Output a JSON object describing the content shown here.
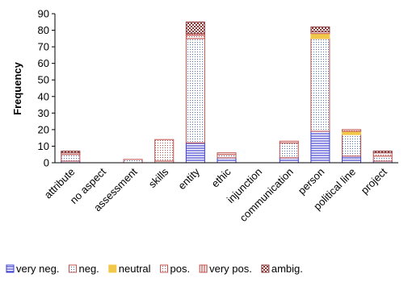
{
  "chart_data": {
    "type": "bar",
    "stacked": true,
    "ylabel": "Frequency",
    "ylim": [
      0,
      90
    ],
    "yticks": [
      0,
      10,
      20,
      30,
      40,
      50,
      60,
      70,
      80,
      90
    ],
    "grid": false,
    "legend_position": "bottom",
    "categories": [
      "attribute",
      "no aspect",
      "assessment",
      "skills",
      "entity",
      "ethic",
      "injunction",
      "communication",
      "person",
      "political line",
      "project"
    ],
    "series": [
      {
        "name": "very neg.",
        "color": "#3f3fcf",
        "pattern": "horizontal-lines",
        "values": [
          1,
          0,
          0,
          0,
          12,
          3,
          0,
          3,
          19,
          4,
          1
        ]
      },
      {
        "name": "neg.",
        "color": "#c0504d",
        "pattern": "dots",
        "values": [
          4,
          0,
          2,
          1,
          63,
          2,
          0,
          9,
          56,
          13,
          3
        ]
      },
      {
        "name": "neutral",
        "color": "#f2c84b",
        "pattern": "solid",
        "values": [
          0,
          0,
          0,
          0,
          0,
          0,
          0,
          0,
          3,
          2,
          0
        ]
      },
      {
        "name": "pos.",
        "color": "#c0504d",
        "pattern": "fine-dots",
        "values": [
          1,
          0,
          0,
          13,
          2,
          1,
          0,
          1,
          1,
          1,
          2
        ]
      },
      {
        "name": "very pos.",
        "color": "#c0504d",
        "pattern": "vertical-lines",
        "values": [
          0,
          0,
          0,
          0,
          1,
          0,
          0,
          0,
          0,
          0,
          0
        ]
      },
      {
        "name": "ambig.",
        "color": "#8b3a3a",
        "pattern": "checker",
        "values": [
          1,
          0,
          0,
          0,
          7,
          0,
          0,
          0,
          3,
          0,
          1
        ]
      }
    ]
  }
}
